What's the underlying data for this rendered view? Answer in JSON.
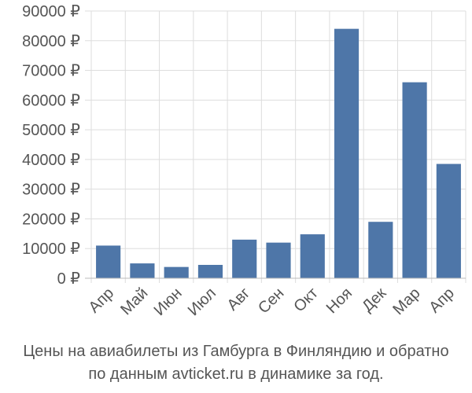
{
  "chart_data": {
    "type": "bar",
    "categories": [
      "Апр",
      "Май",
      "Июн",
      "Июл",
      "Авг",
      "Сен",
      "Окт",
      "Ноя",
      "Дек",
      "Мар",
      "Апр"
    ],
    "values": [
      11000,
      5000,
      3800,
      4500,
      13000,
      12000,
      14800,
      84000,
      19000,
      66000,
      38500
    ],
    "y_ticks": [
      "0 ₽",
      "10000 ₽",
      "20000 ₽",
      "30000 ₽",
      "40000 ₽",
      "50000 ₽",
      "60000 ₽",
      "70000 ₽",
      "80000 ₽",
      "90000 ₽"
    ],
    "y_tick_values": [
      0,
      10000,
      20000,
      30000,
      40000,
      50000,
      60000,
      70000,
      80000,
      90000
    ],
    "ylim": [
      0,
      90000
    ],
    "grid": true,
    "bar_color": "#4e76a8",
    "caption_line1": "Цены на авиабилеты из Гамбурга в Финляндию и обратно",
    "caption_line2": "по данным avticket.ru в динамике за год."
  }
}
